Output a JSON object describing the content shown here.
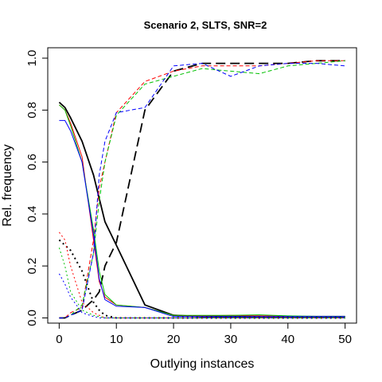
{
  "chart_data": {
    "type": "line",
    "title": "Scenario 2, SLTS, SNR=2",
    "xlabel": "Outlying instances",
    "ylabel": "Rel. frequency",
    "xlim": [
      -2,
      52
    ],
    "ylim": [
      -0.02,
      1.04
    ],
    "xticks": [
      0,
      10,
      20,
      30,
      40,
      50
    ],
    "yticks": [
      0.0,
      0.2,
      0.4,
      0.6,
      0.8,
      1.0
    ],
    "grid": false,
    "legend": "none",
    "x": [
      0,
      1,
      2,
      4,
      6,
      7,
      8,
      10,
      15,
      20,
      25,
      30,
      35,
      40,
      45,
      50
    ],
    "series": [
      {
        "color": "#000000",
        "dash": "solid",
        "width": 1.8,
        "values": [
          0.83,
          0.81,
          0.77,
          0.68,
          0.55,
          0.46,
          0.37,
          0.28,
          0.05,
          0.01,
          0.005,
          0.005,
          0.005,
          0.005,
          0.005,
          0.005
        ]
      },
      {
        "color": "#000000",
        "dash": "12,6",
        "width": 1.8,
        "values": [
          0.0,
          0.0,
          0.01,
          0.03,
          0.07,
          0.1,
          0.2,
          0.29,
          0.8,
          0.95,
          0.98,
          0.98,
          0.98,
          0.98,
          0.99,
          0.99
        ]
      },
      {
        "color": "#000000",
        "dash": "2,4",
        "width": 2,
        "values": [
          0.3,
          0.28,
          0.26,
          0.18,
          0.06,
          0.03,
          0.01,
          0.0,
          0.0,
          0.0,
          0.0,
          0.0,
          0.0,
          0.0,
          0.0,
          0.0
        ]
      },
      {
        "color": "#ff0000",
        "dash": "solid",
        "width": 1,
        "values": [
          0.82,
          0.8,
          0.75,
          0.62,
          0.3,
          0.14,
          0.08,
          0.05,
          0.04,
          0.01,
          0.008,
          0.01,
          0.008,
          0.006,
          0.006,
          0.006
        ]
      },
      {
        "color": "#ff0000",
        "dash": "5,3",
        "width": 1,
        "values": [
          0.0,
          0.0,
          0.02,
          0.04,
          0.3,
          0.5,
          0.6,
          0.79,
          0.91,
          0.95,
          0.97,
          0.97,
          0.97,
          0.98,
          0.99,
          0.99
        ]
      },
      {
        "color": "#ff0000",
        "dash": "2,3",
        "width": 1,
        "values": [
          0.33,
          0.3,
          0.2,
          0.06,
          0.02,
          0.01,
          0.0,
          0.0,
          0.0,
          0.0,
          0.0,
          0.0,
          0.0,
          0.0,
          0.0,
          0.0
        ]
      },
      {
        "color": "#00c000",
        "dash": "solid",
        "width": 1,
        "values": [
          0.82,
          0.8,
          0.74,
          0.6,
          0.34,
          0.18,
          0.09,
          0.05,
          0.04,
          0.01,
          0.01,
          0.01,
          0.012,
          0.008,
          0.006,
          0.006
        ]
      },
      {
        "color": "#00c000",
        "dash": "5,3",
        "width": 1,
        "values": [
          0.0,
          0.0,
          0.01,
          0.05,
          0.25,
          0.45,
          0.6,
          0.78,
          0.9,
          0.93,
          0.96,
          0.95,
          0.94,
          0.97,
          0.98,
          0.99
        ]
      },
      {
        "color": "#00c000",
        "dash": "2,3",
        "width": 1,
        "values": [
          0.27,
          0.2,
          0.1,
          0.03,
          0.01,
          0.005,
          0.0,
          0.0,
          0.0,
          0.0,
          0.0,
          0.0,
          0.0,
          0.0,
          0.0,
          0.0
        ]
      },
      {
        "color": "#0000ff",
        "dash": "solid",
        "width": 1,
        "values": [
          0.76,
          0.76,
          0.72,
          0.6,
          0.32,
          0.15,
          0.07,
          0.045,
          0.04,
          0.005,
          0.005,
          0.005,
          0.005,
          0.005,
          0.005,
          0.005
        ]
      },
      {
        "color": "#0000ff",
        "dash": "5,3",
        "width": 1,
        "values": [
          0.0,
          0.0,
          0.01,
          0.03,
          0.25,
          0.55,
          0.68,
          0.79,
          0.81,
          0.97,
          0.98,
          0.93,
          0.97,
          0.98,
          0.98,
          0.97
        ]
      },
      {
        "color": "#0000ff",
        "dash": "2,3",
        "width": 1,
        "values": [
          0.17,
          0.13,
          0.08,
          0.02,
          0.005,
          0.0,
          0.0,
          0.0,
          0.0,
          0.0,
          0.0,
          0.0,
          0.0,
          0.0,
          0.0,
          0.0
        ]
      }
    ]
  }
}
